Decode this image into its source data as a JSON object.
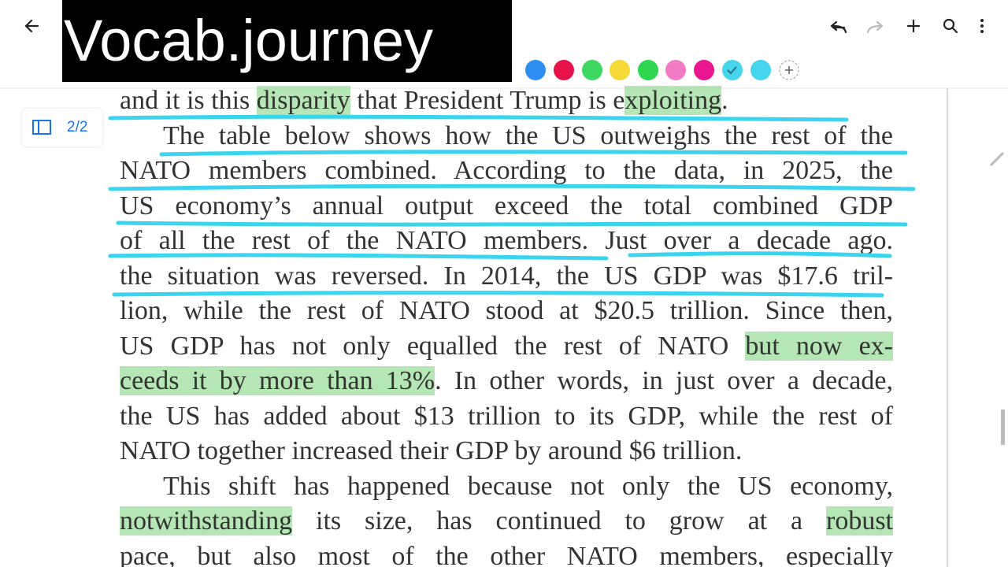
{
  "banner": "Vocab.journey",
  "page_indicator": "2/2",
  "lines": [
    {
      "segments": [
        {
          "text": "and it is this "
        },
        {
          "text": "disparity",
          "highlight": true
        },
        {
          "text": " that President Trump is e"
        },
        {
          "text": "xploiting",
          "highlight": true
        },
        {
          "text": "."
        }
      ]
    },
    {
      "segments": [
        {
          "text": "The table below shows how the US outweighs the rest of the"
        }
      ]
    },
    {
      "segments": [
        {
          "text": "NATO members combined. According to the data, in 2025, the"
        }
      ]
    },
    {
      "segments": [
        {
          "text": "US economy’s annual output exceed the total combined GDP"
        }
      ]
    },
    {
      "segments": [
        {
          "text": "of all the rest of the NATO members. Just over a decade ago."
        }
      ]
    },
    {
      "segments": [
        {
          "text": "the situation was reversed. In 2014, the US GDP was $17.6 tril-"
        }
      ]
    },
    {
      "segments": [
        {
          "text": "lion, while the rest of NATO stood at $20.5 trillion. Since then,"
        }
      ]
    },
    {
      "segments": [
        {
          "text": "US GDP has not only equalled the rest of NATO "
        },
        {
          "text": "but now ex-",
          "highlight": true
        }
      ]
    },
    {
      "segments": [
        {
          "text": "ceeds it by more than 13%",
          "highlight": true
        },
        {
          "text": ". In other words, in just over a decade,"
        }
      ]
    },
    {
      "segments": [
        {
          "text": "the US has added about $13 trillion to its GDP, while the rest of"
        }
      ]
    },
    {
      "segments": [
        {
          "text": "NATO together increased their GDP by around $6 trillion."
        }
      ]
    },
    {
      "segments": [
        {
          "text": "This shift has happened because not only the US economy,"
        }
      ]
    },
    {
      "segments": [
        {
          "text": "notwithstanding",
          "highlight": true
        },
        {
          "text": " its size, has continued to grow at a "
        },
        {
          "text": "robust",
          "highlight": true
        }
      ]
    },
    {
      "segments": [
        {
          "text": "pace, but also most of the other NATO members, especially"
        }
      ]
    }
  ]
}
